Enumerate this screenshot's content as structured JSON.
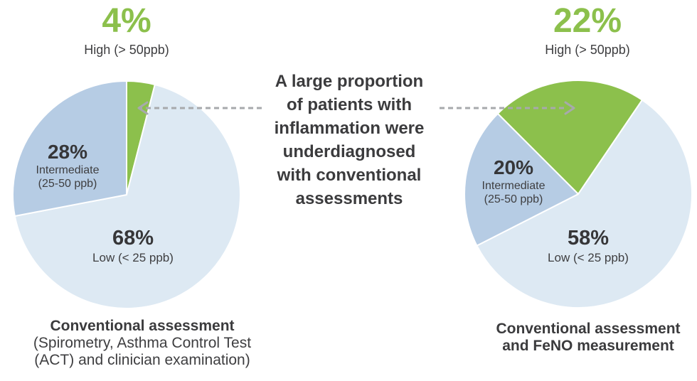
{
  "colors": {
    "high_green": "#8cc04c",
    "intermediate_blue": "#b6cce4",
    "low_blue": "#dde9f3",
    "text_dark": "#3b3b3d",
    "arrow_gray": "#a7a9ac"
  },
  "center_message": {
    "text": "A large proportion\nof patients with\ninflammation were\nunderdiagnosed\nwith conventional\nassessments"
  },
  "chart_data": [
    {
      "id": "conventional-assessment",
      "type": "pie",
      "start_angle_deg": 0,
      "highlight": {
        "value": "4%",
        "label": "High (> 50ppb)"
      },
      "slices": [
        {
          "key": "high",
          "name": "High (> 50ppb)",
          "pct": 4,
          "color": "#8cc04c"
        },
        {
          "key": "low",
          "name": "Low (< 25 ppb)",
          "pct": 68,
          "color": "#dde9f3"
        },
        {
          "key": "intermediate",
          "name": "Intermediate (25-50 ppb)",
          "pct": 28,
          "color": "#b6cce4"
        }
      ],
      "labels": {
        "intermediate": {
          "value": "28%",
          "sub": "Intermediate\n(25-50 ppb)"
        },
        "low": {
          "value": "68%",
          "sub": "Low (< 25 ppb)"
        }
      },
      "caption": {
        "title": "Conventional assessment",
        "subtitle": "(Spirometry, Asthma Control Test\n(ACT) and clinician examination)"
      }
    },
    {
      "id": "conventional-assessment-and-feno",
      "type": "pie",
      "start_angle_deg": -45,
      "highlight": {
        "value": "22%",
        "label": "High (> 50ppb)"
      },
      "slices": [
        {
          "key": "high",
          "name": "High (> 50ppb)",
          "pct": 22,
          "color": "#8cc04c"
        },
        {
          "key": "low",
          "name": "Low (< 25 ppb)",
          "pct": 58,
          "color": "#dde9f3"
        },
        {
          "key": "intermediate",
          "name": "Intermediate (25-50 ppb)",
          "pct": 20,
          "color": "#b6cce4"
        }
      ],
      "labels": {
        "intermediate": {
          "value": "20%",
          "sub": "Intermediate\n(25-50 ppb)"
        },
        "low": {
          "value": "58%",
          "sub": "Low (< 25 ppb)"
        }
      },
      "caption": {
        "title": "Conventional assessment\nand FeNO measurement",
        "subtitle": ""
      }
    }
  ]
}
